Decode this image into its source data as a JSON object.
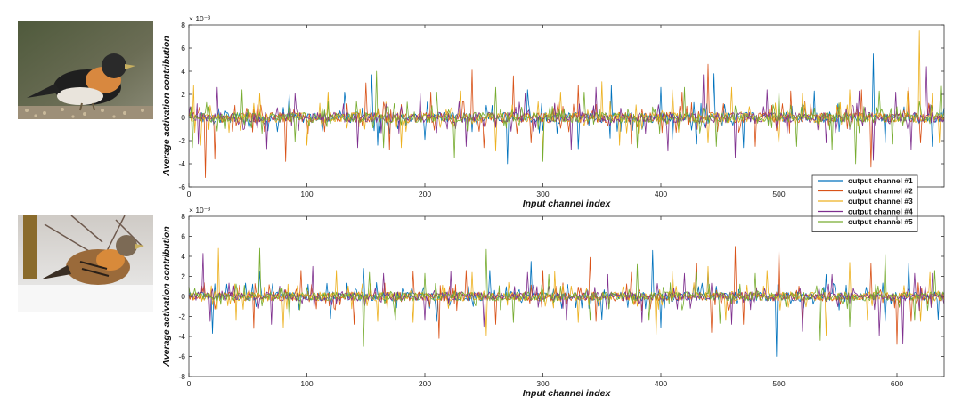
{
  "photos": [
    {
      "icon": "brambling-bird-on-seeds-photo"
    },
    {
      "icon": "brambling-bird-on-snow-photo"
    }
  ],
  "chart_data": [
    {
      "type": "line",
      "title": "",
      "xlabel": "Input channel index",
      "ylabel": "Average activation contribution",
      "exponent_label": "× 10⁻³",
      "xlim": [
        0,
        640
      ],
      "ylim": [
        -6,
        8
      ],
      "xticks": [
        0,
        100,
        200,
        300,
        400,
        500
      ],
      "yticks": [
        -6,
        -4,
        -2,
        0,
        2,
        4,
        6,
        8
      ],
      "grid": false,
      "legend_position": "bottom-right",
      "legend": [
        "output channel #1",
        "output channel #2",
        "output channel #3",
        "output channel #4",
        "output channel #5"
      ],
      "series": [
        {
          "name": "output channel #1",
          "color": "#0072BD",
          "peaks": [
            [
              132,
              2.2
            ],
            [
              155,
              3.7
            ],
            [
              160,
              -2.4
            ],
            [
              270,
              -4.0
            ],
            [
              287,
              2.4
            ],
            [
              330,
              -2.7
            ],
            [
              358,
              -2.2
            ],
            [
              358,
              2.8
            ],
            [
              357,
              -1.8
            ],
            [
              400,
              2.6
            ],
            [
              410,
              -1.9
            ],
            [
              430,
              -2.3
            ],
            [
              445,
              3.8
            ],
            [
              470,
              -2.6
            ],
            [
              530,
              2.3
            ],
            [
              580,
              5.5
            ],
            [
              590,
              -2.2
            ],
            [
              630,
              -2.5
            ],
            [
              85,
              2.0
            ],
            [
              200,
              -1.9
            ]
          ]
        },
        {
          "name": "output channel #2",
          "color": "#D95319",
          "peaks": [
            [
              14,
              -5.2
            ],
            [
              22,
              -3.6
            ],
            [
              82,
              -3.8
            ],
            [
              150,
              3.0
            ],
            [
              170,
              -2.8
            ],
            [
              205,
              2.2
            ],
            [
              240,
              4.1
            ],
            [
              250,
              -2.6
            ],
            [
              275,
              3.6
            ],
            [
              290,
              -2.2
            ],
            [
              330,
              2.8
            ],
            [
              375,
              -2.3
            ],
            [
              418,
              2.2
            ],
            [
              440,
              4.6
            ],
            [
              480,
              -2.5
            ],
            [
              510,
              2.3
            ],
            [
              570,
              2.4
            ],
            [
              578,
              -4.3
            ],
            [
              610,
              2.6
            ],
            [
              620,
              -2.2
            ]
          ]
        },
        {
          "name": "output channel #3",
          "color": "#EDB120",
          "peaks": [
            [
              4,
              2.8
            ],
            [
              10,
              -2.4
            ],
            [
              60,
              2.1
            ],
            [
              100,
              -2.4
            ],
            [
              118,
              2.2
            ],
            [
              180,
              -2.6
            ],
            [
              230,
              2.3
            ],
            [
              260,
              -2.9
            ],
            [
              300,
              -3.0
            ],
            [
              315,
              2.2
            ],
            [
              350,
              3.1
            ],
            [
              365,
              -2.4
            ],
            [
              410,
              2.4
            ],
            [
              440,
              -2.2
            ],
            [
              460,
              2.6
            ],
            [
              500,
              -2.3
            ],
            [
              520,
              2.1
            ],
            [
              560,
              2.4
            ],
            [
              609,
              2.3
            ],
            [
              619,
              7.5
            ],
            [
              630,
              2.1
            ],
            [
              636,
              -2.2
            ]
          ]
        },
        {
          "name": "output channel #4",
          "color": "#7E2F8E",
          "peaks": [
            [
              8,
              -2.3
            ],
            [
              24,
              2.6
            ],
            [
              66,
              -2.7
            ],
            [
              90,
              2.1
            ],
            [
              143,
              -2.6
            ],
            [
              196,
              2.1
            ],
            [
              235,
              -2.5
            ],
            [
              285,
              2.1
            ],
            [
              324,
              -2.8
            ],
            [
              345,
              2.6
            ],
            [
              406,
              -2.9
            ],
            [
              436,
              3.7
            ],
            [
              463,
              -3.5
            ],
            [
              490,
              2.4
            ],
            [
              540,
              -2.2
            ],
            [
              568,
              2.3
            ],
            [
              580,
              -3.7
            ],
            [
              599,
              2.2
            ],
            [
              612,
              -2.8
            ],
            [
              625,
              4.4
            ]
          ]
        },
        {
          "name": "output channel #5",
          "color": "#77AC30",
          "peaks": [
            [
              3,
              -2.6
            ],
            [
              45,
              2.4
            ],
            [
              90,
              -2.1
            ],
            [
              159,
              4.0
            ],
            [
              165,
              -2.6
            ],
            [
              210,
              2.2
            ],
            [
              225,
              -3.5
            ],
            [
              260,
              2.6
            ],
            [
              300,
              -3.8
            ],
            [
              335,
              2.2
            ],
            [
              380,
              -2.6
            ],
            [
              420,
              2.6
            ],
            [
              447,
              -2.5
            ],
            [
              500,
              2.4
            ],
            [
              515,
              -2.5
            ],
            [
              545,
              -2.8
            ],
            [
              565,
              -4.0
            ],
            [
              585,
              2.3
            ],
            [
              596,
              -2.3
            ],
            [
              637,
              2.7
            ]
          ]
        }
      ]
    },
    {
      "type": "line",
      "title": "",
      "xlabel": "Input channel index",
      "ylabel": "Average activation contribution",
      "exponent_label": "× 10⁻³",
      "xlim": [
        0,
        640
      ],
      "ylim": [
        -8,
        8
      ],
      "xticks": [
        0,
        100,
        200,
        300,
        400,
        500,
        600
      ],
      "yticks": [
        -8,
        -6,
        -4,
        -2,
        0,
        2,
        4,
        6,
        8
      ],
      "grid": false,
      "legend_position": "none",
      "series": [
        {
          "name": "output channel #1",
          "color": "#0072BD",
          "peaks": [
            [
              20,
              -3.7
            ],
            [
              60,
              2.5
            ],
            [
              120,
              -2.2
            ],
            [
              148,
              2.8
            ],
            [
              210,
              -2.5
            ],
            [
              255,
              2.6
            ],
            [
              290,
              3.5
            ],
            [
              350,
              -2.3
            ],
            [
              393,
              4.6
            ],
            [
              400,
              -3.1
            ],
            [
              440,
              2.7
            ],
            [
              498,
              -6.0
            ],
            [
              540,
              2.2
            ],
            [
              590,
              -2.5
            ],
            [
              610,
              3.3
            ],
            [
              635,
              -2.3
            ]
          ]
        },
        {
          "name": "output channel #2",
          "color": "#D95319",
          "peaks": [
            [
              55,
              -3.2
            ],
            [
              95,
              2.6
            ],
            [
              140,
              -2.8
            ],
            [
              190,
              2.5
            ],
            [
              212,
              -4.2
            ],
            [
              235,
              2.6
            ],
            [
              260,
              -2.8
            ],
            [
              300,
              2.6
            ],
            [
              340,
              3.9
            ],
            [
              345,
              -2.5
            ],
            [
              375,
              2.4
            ],
            [
              430,
              3.3
            ],
            [
              443,
              -3.6
            ],
            [
              463,
              5.0
            ],
            [
              470,
              -2.8
            ],
            [
              500,
              4.9
            ],
            [
              520,
              -2.4
            ],
            [
              578,
              3.3
            ],
            [
              600,
              -4.8
            ],
            [
              612,
              -2.5
            ]
          ]
        },
        {
          "name": "output channel #3",
          "color": "#EDB120",
          "peaks": [
            [
              25,
              4.8
            ],
            [
              40,
              -2.4
            ],
            [
              80,
              -3.1
            ],
            [
              125,
              2.6
            ],
            [
              160,
              -2.5
            ],
            [
              190,
              -2.6
            ],
            [
              240,
              2.4
            ],
            [
              252,
              -3.9
            ],
            [
              310,
              2.5
            ],
            [
              330,
              -2.6
            ],
            [
              396,
              -3.8
            ],
            [
              410,
              2.5
            ],
            [
              440,
              3.0
            ],
            [
              455,
              -2.4
            ],
            [
              490,
              2.6
            ],
            [
              540,
              -3.9
            ],
            [
              560,
              3.4
            ],
            [
              575,
              -2.4
            ],
            [
              620,
              -2.5
            ],
            [
              628,
              2.4
            ]
          ]
        },
        {
          "name": "output channel #4",
          "color": "#7E2F8E",
          "peaks": [
            [
              12,
              4.3
            ],
            [
              18,
              -2.5
            ],
            [
              70,
              -2.8
            ],
            [
              105,
              3.0
            ],
            [
              165,
              2.3
            ],
            [
              200,
              -2.4
            ],
            [
              222,
              2.5
            ],
            [
              250,
              -3.0
            ],
            [
              287,
              2.4
            ],
            [
              320,
              -2.4
            ],
            [
              355,
              2.2
            ],
            [
              384,
              -2.6
            ],
            [
              420,
              2.3
            ],
            [
              460,
              -2.8
            ],
            [
              520,
              -3.5
            ],
            [
              545,
              2.2
            ],
            [
              585,
              -3.9
            ],
            [
              605,
              -4.7
            ],
            [
              615,
              2.3
            ],
            [
              630,
              2.3
            ]
          ]
        },
        {
          "name": "output channel #5",
          "color": "#77AC30",
          "peaks": [
            [
              60,
              4.8
            ],
            [
              85,
              -2.3
            ],
            [
              148,
              -5.0
            ],
            [
              153,
              2.4
            ],
            [
              175,
              -2.4
            ],
            [
              200,
              2.3
            ],
            [
              252,
              4.7
            ],
            [
              275,
              -2.6
            ],
            [
              305,
              2.2
            ],
            [
              340,
              -2.4
            ],
            [
              380,
              3.2
            ],
            [
              390,
              -2.4
            ],
            [
              430,
              2.4
            ],
            [
              450,
              -2.7
            ],
            [
              480,
              2.3
            ],
            [
              535,
              -4.4
            ],
            [
              560,
              -3.0
            ],
            [
              590,
              4.2
            ],
            [
              615,
              -2.4
            ],
            [
              632,
              2.6
            ]
          ]
        }
      ]
    }
  ]
}
